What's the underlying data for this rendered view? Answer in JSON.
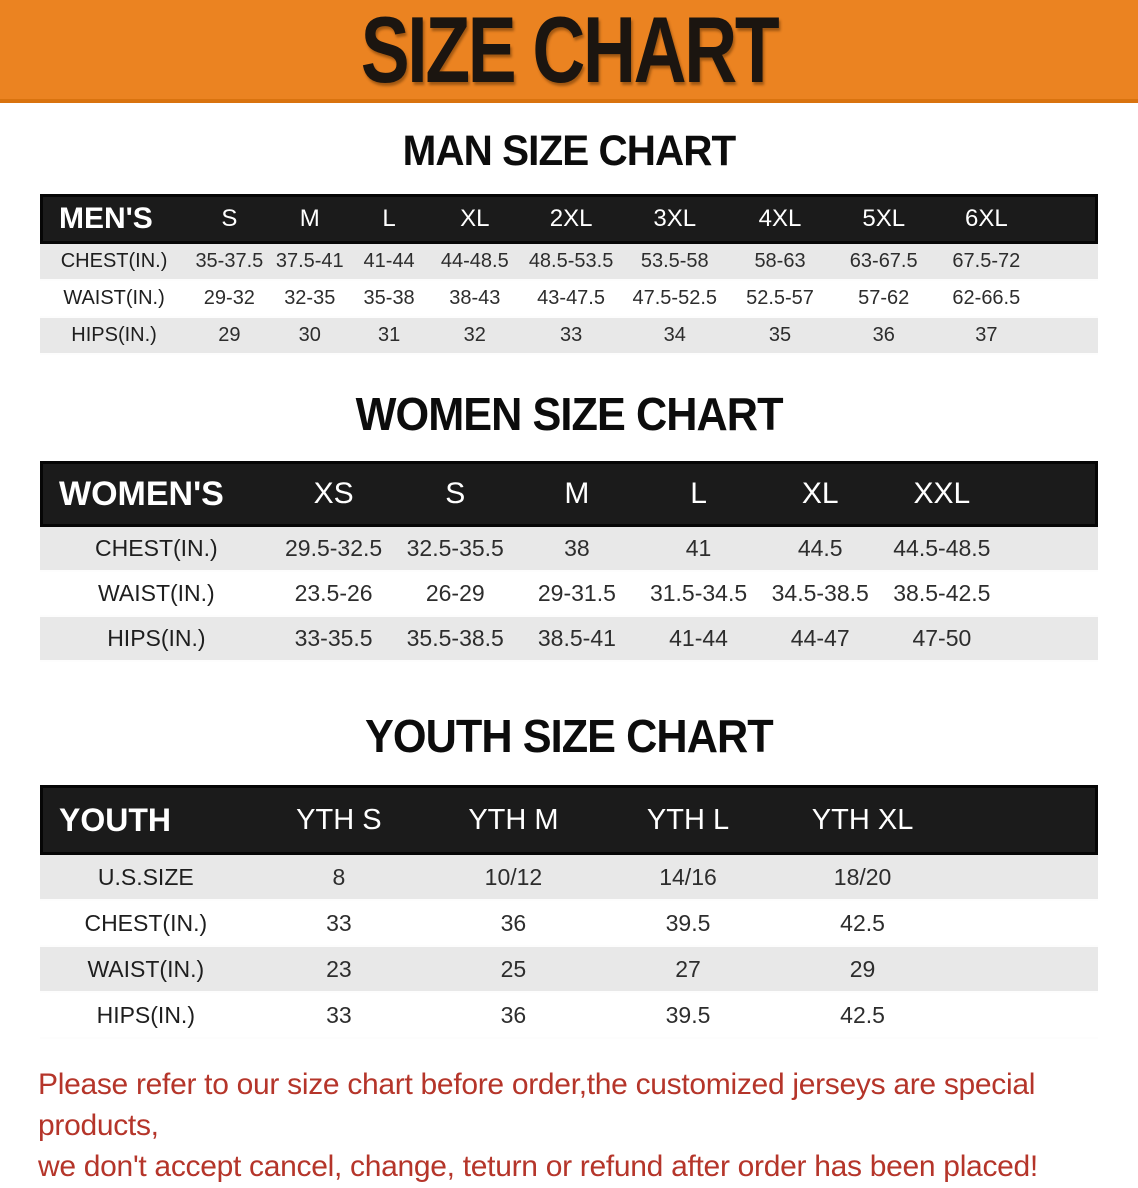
{
  "banner": {
    "title": "SIZE CHART",
    "bg_color": "#EB8321",
    "text_color": "#1b1510"
  },
  "sections": [
    {
      "heading": "MAN SIZE CHART"
    },
    {
      "heading": "WOMEN SIZE CHART"
    },
    {
      "heading": "YOUTH SIZE CHART"
    }
  ],
  "tables": [
    {
      "label": "MEN'S",
      "sizes": [
        "S",
        "M",
        "L",
        "XL",
        "2XL",
        "3XL",
        "4XL",
        "5XL",
        "6XL"
      ],
      "rows": [
        {
          "label": "CHEST(IN.)",
          "values": [
            "35-37.5",
            "37.5-41",
            "41-44",
            "44-48.5",
            "48.5-53.5",
            "53.5-58",
            "58-63",
            "63-67.5",
            "67.5-72"
          ]
        },
        {
          "label": "WAIST(IN.)",
          "values": [
            "29-32",
            "32-35",
            "35-38",
            "38-43",
            "43-47.5",
            "47.5-52.5",
            "52.5-57",
            "57-62",
            "62-66.5"
          ]
        },
        {
          "label": "HIPS(IN.)",
          "values": [
            "29",
            "30",
            "31",
            "32",
            "33",
            "34",
            "35",
            "36",
            "37"
          ]
        }
      ]
    },
    {
      "label": "WOMEN'S",
      "sizes": [
        "XS",
        "S",
        "M",
        "L",
        "XL",
        "XXL"
      ],
      "rows": [
        {
          "label": "CHEST(IN.)",
          "values": [
            "29.5-32.5",
            "32.5-35.5",
            "38",
            "41",
            "44.5",
            "44.5-48.5"
          ]
        },
        {
          "label": "WAIST(IN.)",
          "values": [
            "23.5-26",
            "26-29",
            "29-31.5",
            "31.5-34.5",
            "34.5-38.5",
            "38.5-42.5"
          ]
        },
        {
          "label": "HIPS(IN.)",
          "values": [
            "33-35.5",
            "35.5-38.5",
            "38.5-41",
            "41-44",
            "44-47",
            "47-50"
          ]
        }
      ]
    },
    {
      "label": "YOUTH",
      "sizes": [
        "YTH S",
        "YTH M",
        "YTH L",
        "YTH XL"
      ],
      "rows": [
        {
          "label": "U.S.SIZE",
          "values": [
            "8",
            "10/12",
            "14/16",
            "18/20"
          ]
        },
        {
          "label": "CHEST(IN.)",
          "values": [
            "33",
            "36",
            "39.5",
            "42.5"
          ]
        },
        {
          "label": "WAIST(IN.)",
          "values": [
            "23",
            "25",
            "27",
            "29"
          ]
        },
        {
          "label": "HIPS(IN.)",
          "values": [
            "33",
            "36",
            "39.5",
            "42.5"
          ]
        }
      ]
    }
  ],
  "disclaimer": {
    "line1": "Please refer to our size chart before order,the customized jerseys are special products,",
    "line2": "we don't accept cancel, change, teturn or refund after order has been placed!",
    "color": "#B5352A"
  }
}
